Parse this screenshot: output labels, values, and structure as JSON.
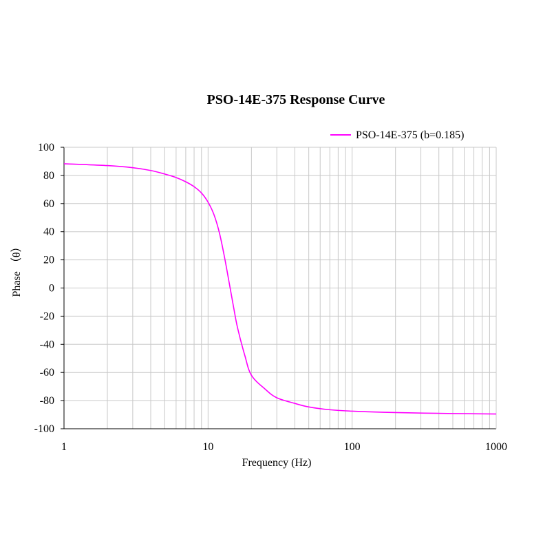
{
  "chart_data": {
    "type": "line",
    "title": "PSO-14E-375 Response Curve",
    "xlabel": "Frequency (Hz)",
    "ylabel": "Phase （θ）",
    "x_scale": "log",
    "xlim": [
      1,
      1000
    ],
    "ylim": [
      -100,
      100
    ],
    "x_ticks": [
      1,
      10,
      100,
      1000
    ],
    "x_tick_labels": [
      "1",
      "10",
      "100",
      "1000"
    ],
    "y_ticks": [
      100,
      80,
      60,
      40,
      20,
      0,
      -20,
      -40,
      -60,
      -80,
      -100
    ],
    "y_tick_labels": [
      "100",
      "80",
      "60",
      "40",
      "20",
      "0",
      "-20",
      "-40",
      "-60",
      "-80",
      "-100"
    ],
    "grid": true,
    "legend_position": "top-right",
    "series": [
      {
        "name": "PSO-14E-375 (b=0.185)",
        "color": "#ff00ff",
        "x": [
          1,
          2,
          3,
          4,
          5,
          6,
          7,
          8,
          9,
          10,
          11,
          12,
          13,
          14,
          15,
          16,
          18,
          20,
          25,
          30,
          40,
          50,
          70,
          100,
          200,
          500,
          1000
        ],
        "y": [
          88.3,
          87.0,
          85.5,
          83.5,
          81.0,
          78.5,
          75.5,
          72.0,
          67.5,
          61.0,
          52.0,
          39.0,
          22.0,
          4.0,
          -13.0,
          -28.0,
          -48.0,
          -62.0,
          -72.0,
          -78.0,
          -82.0,
          -84.5,
          -86.5,
          -87.5,
          -88.5,
          -89.2,
          -89.5
        ]
      }
    ]
  }
}
